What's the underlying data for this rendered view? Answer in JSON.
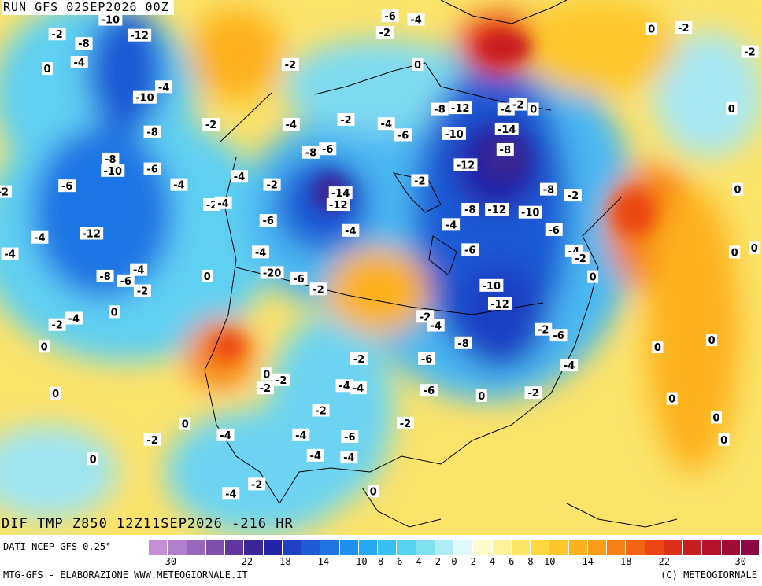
{
  "header": {
    "run_title": "RUN GFS 02SEP2026 00Z"
  },
  "field": {
    "title": "DIF TMP Z850 12Z11SEP2026 -216 HR"
  },
  "footer": {
    "source": "DATI NCEP GFS 0.25°",
    "credits_left": "MTG-GFS - ELABORAZIONE WWW.METEOGIORNALE.IT",
    "credits_right": "(C) METEOGIORNALE"
  },
  "legend": {
    "colors": [
      "#c58fd6",
      "#b07fcc",
      "#9968bd",
      "#7f4fae",
      "#6236a2",
      "#3a2696",
      "#2424a8",
      "#1f3fc4",
      "#1f5ad6",
      "#1f74e4",
      "#1f8ff0",
      "#26a8f4",
      "#38c0f4",
      "#55d2f0",
      "#80e0f0",
      "#b0ecf4",
      "#dff8f8",
      "#fcfccc",
      "#fcf39a",
      "#fde664",
      "#fed73e",
      "#fdc62a",
      "#fcb21f",
      "#fb9b19",
      "#f78015",
      "#f26412",
      "#ea4810",
      "#dc2f18",
      "#c81e22",
      "#b5132c",
      "#a00c36",
      "#8c0840"
    ],
    "tick_labels": [
      {
        "v": -30,
        "t": "-30"
      },
      {
        "v": -22,
        "t": "-22"
      },
      {
        "v": -18,
        "t": "-18"
      },
      {
        "v": -14,
        "t": "-14"
      },
      {
        "v": -10,
        "t": "-10"
      },
      {
        "v": -8,
        "t": "-8"
      },
      {
        "v": -6,
        "t": "-6"
      },
      {
        "v": -4,
        "t": "-4"
      },
      {
        "v": -2,
        "t": "-2"
      },
      {
        "v": 0,
        "t": "0"
      },
      {
        "v": 2,
        "t": "2"
      },
      {
        "v": 4,
        "t": "4"
      },
      {
        "v": 6,
        "t": "6"
      },
      {
        "v": 8,
        "t": "8"
      },
      {
        "v": 10,
        "t": "10"
      },
      {
        "v": 14,
        "t": "14"
      },
      {
        "v": 18,
        "t": "18"
      },
      {
        "v": 22,
        "t": "22"
      },
      {
        "v": 30,
        "t": "30"
      }
    ]
  },
  "map_labels": [
    {
      "t": "-10",
      "u": 0.145,
      "w": 0.033
    },
    {
      "t": "-2",
      "u": 0.075,
      "w": 0.058
    },
    {
      "t": "-8",
      "u": 0.11,
      "w": 0.074
    },
    {
      "t": "-12",
      "u": 0.183,
      "w": 0.06
    },
    {
      "t": "-4",
      "u": 0.104,
      "w": 0.106
    },
    {
      "t": "0",
      "u": 0.062,
      "w": 0.117
    },
    {
      "t": "-4",
      "u": 0.215,
      "w": 0.148
    },
    {
      "t": "-10",
      "u": 0.19,
      "w": 0.166
    },
    {
      "t": "-2",
      "u": 0.277,
      "w": 0.212
    },
    {
      "t": "-8",
      "u": 0.2,
      "w": 0.225
    },
    {
      "t": "-8",
      "u": 0.145,
      "w": 0.271
    },
    {
      "t": "-10",
      "u": 0.148,
      "w": 0.291
    },
    {
      "t": "-6",
      "u": 0.2,
      "w": 0.288
    },
    {
      "t": "-4",
      "u": 0.235,
      "w": 0.315
    },
    {
      "t": "-6",
      "u": 0.088,
      "w": 0.317
    },
    {
      "t": "-12",
      "u": 0.12,
      "w": 0.398
    },
    {
      "t": "-4",
      "u": 0.052,
      "w": 0.405
    },
    {
      "t": "-4",
      "u": 0.013,
      "w": 0.433
    },
    {
      "t": "-8",
      "u": 0.138,
      "w": 0.471
    },
    {
      "t": "-6",
      "u": 0.165,
      "w": 0.479
    },
    {
      "t": "-4",
      "u": 0.182,
      "w": 0.46
    },
    {
      "t": "-2",
      "u": 0.187,
      "w": 0.496
    },
    {
      "t": "0",
      "u": 0.272,
      "w": 0.471
    },
    {
      "t": "0",
      "u": 0.15,
      "w": 0.532
    },
    {
      "t": "-2",
      "u": 0.075,
      "w": 0.554
    },
    {
      "t": "-4",
      "u": 0.097,
      "w": 0.543
    },
    {
      "t": "0",
      "u": 0.058,
      "w": 0.591
    },
    {
      "t": "0",
      "u": 0.073,
      "w": 0.671
    },
    {
      "t": "0",
      "u": 0.243,
      "w": 0.723
    },
    {
      "t": "-2",
      "u": 0.2,
      "w": 0.75
    },
    {
      "t": "0",
      "u": 0.122,
      "w": 0.783
    },
    {
      "t": "-4",
      "u": 0.314,
      "w": 0.301
    },
    {
      "t": "-2",
      "u": 0.278,
      "w": 0.349
    },
    {
      "t": "-4",
      "u": 0.293,
      "w": 0.346
    },
    {
      "t": "-2",
      "u": 0.357,
      "w": 0.315
    },
    {
      "t": "-4",
      "u": 0.382,
      "w": 0.212
    },
    {
      "t": "-6",
      "u": 0.352,
      "w": 0.376
    },
    {
      "t": "-4",
      "u": 0.342,
      "w": 0.43
    },
    {
      "t": "-20",
      "u": 0.357,
      "w": 0.465
    },
    {
      "t": "-6",
      "u": 0.392,
      "w": 0.475
    },
    {
      "t": "-2",
      "u": 0.418,
      "w": 0.493
    },
    {
      "t": "-2",
      "u": 0.381,
      "w": 0.11
    },
    {
      "t": "-8",
      "u": 0.408,
      "w": 0.26
    },
    {
      "t": "-6",
      "u": 0.43,
      "w": 0.254
    },
    {
      "t": "-14",
      "u": 0.447,
      "w": 0.329
    },
    {
      "t": "-12",
      "u": 0.444,
      "w": 0.349
    },
    {
      "t": "-4",
      "u": 0.46,
      "w": 0.393
    },
    {
      "t": "-2",
      "u": 0.454,
      "w": 0.204
    },
    {
      "t": "-4",
      "u": 0.507,
      "w": 0.211
    },
    {
      "t": "-6",
      "u": 0.529,
      "w": 0.23
    },
    {
      "t": "-2",
      "u": 0.505,
      "w": 0.055
    },
    {
      "t": "-6",
      "u": 0.512,
      "w": 0.027
    },
    {
      "t": "-4",
      "u": 0.546,
      "w": 0.033
    },
    {
      "t": "0",
      "u": 0.548,
      "w": 0.11
    },
    {
      "t": "-2",
      "u": 0.551,
      "w": 0.308
    },
    {
      "t": "-8",
      "u": 0.577,
      "w": 0.186
    },
    {
      "t": "-12",
      "u": 0.604,
      "w": 0.184
    },
    {
      "t": "-10",
      "u": 0.596,
      "w": 0.228
    },
    {
      "t": "-12",
      "u": 0.611,
      "w": 0.281
    },
    {
      "t": "-4",
      "u": 0.664,
      "w": 0.186
    },
    {
      "t": "-2",
      "u": 0.68,
      "w": 0.178
    },
    {
      "t": "0",
      "u": 0.7,
      "w": 0.186
    },
    {
      "t": "-14",
      "u": 0.665,
      "w": 0.22
    },
    {
      "t": "-8",
      "u": 0.663,
      "w": 0.255
    },
    {
      "t": "-8",
      "u": 0.72,
      "w": 0.323
    },
    {
      "t": "-2",
      "u": 0.752,
      "w": 0.333
    },
    {
      "t": "-8",
      "u": 0.617,
      "w": 0.357
    },
    {
      "t": "-12",
      "u": 0.652,
      "w": 0.357
    },
    {
      "t": "-10",
      "u": 0.696,
      "w": 0.362
    },
    {
      "t": "-4",
      "u": 0.592,
      "w": 0.383
    },
    {
      "t": "-6",
      "u": 0.727,
      "w": 0.392
    },
    {
      "t": "-6",
      "u": 0.617,
      "w": 0.426
    },
    {
      "t": "-4",
      "u": 0.753,
      "w": 0.428
    },
    {
      "t": "-2",
      "u": 0.762,
      "w": 0.44
    },
    {
      "t": "0",
      "u": 0.778,
      "w": 0.472
    },
    {
      "t": "-10",
      "u": 0.645,
      "w": 0.487
    },
    {
      "t": "-12",
      "u": 0.656,
      "w": 0.518
    },
    {
      "t": "-2",
      "u": 0.558,
      "w": 0.54
    },
    {
      "t": "-4",
      "u": 0.572,
      "w": 0.555
    },
    {
      "t": "-2",
      "u": 0.713,
      "w": 0.562
    },
    {
      "t": "-6",
      "u": 0.733,
      "w": 0.572
    },
    {
      "t": "-8",
      "u": 0.608,
      "w": 0.585
    },
    {
      "t": "-6",
      "u": 0.56,
      "w": 0.612
    },
    {
      "t": "-4",
      "u": 0.747,
      "w": 0.623
    },
    {
      "t": "-2",
      "u": 0.471,
      "w": 0.612
    },
    {
      "t": "-4",
      "u": 0.452,
      "w": 0.658
    },
    {
      "t": "-4",
      "u": 0.47,
      "w": 0.662
    },
    {
      "t": "-6",
      "u": 0.563,
      "w": 0.666
    },
    {
      "t": "-2",
      "u": 0.7,
      "w": 0.67
    },
    {
      "t": "0",
      "u": 0.632,
      "w": 0.675
    },
    {
      "t": "0",
      "u": 0.35,
      "w": 0.638
    },
    {
      "t": "-2",
      "u": 0.369,
      "w": 0.648
    },
    {
      "t": "-2",
      "u": 0.348,
      "w": 0.662
    },
    {
      "t": "-2",
      "u": 0.421,
      "w": 0.7
    },
    {
      "t": "-2",
      "u": 0.532,
      "w": 0.722
    },
    {
      "t": "-6",
      "u": 0.459,
      "w": 0.745
    },
    {
      "t": "-4",
      "u": 0.395,
      "w": 0.742
    },
    {
      "t": "-4",
      "u": 0.296,
      "w": 0.742
    },
    {
      "t": "-4",
      "u": 0.414,
      "w": 0.777
    },
    {
      "t": "-4",
      "u": 0.458,
      "w": 0.78
    },
    {
      "t": "-2",
      "u": 0.337,
      "w": 0.826
    },
    {
      "t": "-4",
      "u": 0.303,
      "w": 0.842
    },
    {
      "t": "0",
      "u": 0.49,
      "w": 0.838
    },
    {
      "t": "0",
      "u": 0.855,
      "w": 0.049
    },
    {
      "t": "-2",
      "u": 0.897,
      "w": 0.047
    },
    {
      "t": "-2",
      "u": 0.984,
      "w": 0.088
    },
    {
      "t": "0",
      "u": 0.96,
      "w": 0.185
    },
    {
      "t": "0",
      "u": 0.968,
      "w": 0.323
    },
    {
      "t": "0",
      "u": 0.964,
      "w": 0.43
    },
    {
      "t": "0",
      "u": 0.99,
      "w": 0.423
    },
    {
      "t": "0",
      "u": 0.863,
      "w": 0.592
    },
    {
      "t": "0",
      "u": 0.934,
      "w": 0.58
    },
    {
      "t": "0",
      "u": 0.94,
      "w": 0.712
    },
    {
      "t": "0",
      "u": 0.95,
      "w": 0.75
    },
    {
      "t": "0",
      "u": 0.93,
      "w": 0.885
    },
    {
      "t": "0",
      "u": 0.882,
      "w": 0.68
    },
    {
      "t": "-2",
      "u": 0.004,
      "w": 0.327
    }
  ]
}
